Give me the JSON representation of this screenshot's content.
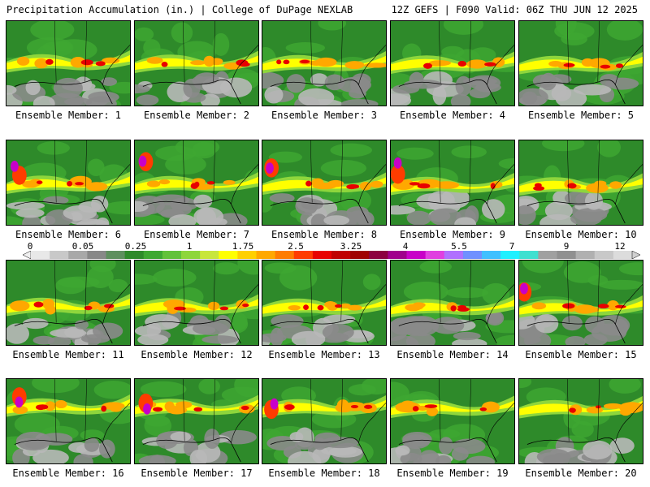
{
  "header": {
    "title_left": "Precipitation Accumulation (in.) | College of DuPage NEXLAB",
    "title_right": "12Z GEFS | F090 Valid: 06Z THU JUN 12 2025"
  },
  "colorbar": {
    "labels": [
      "0",
      "0.05",
      "0.25",
      "1",
      "1.75",
      "2.5",
      "3.25",
      "4",
      "5.5",
      "7",
      "9",
      "12"
    ],
    "colors": [
      "#e8e8e8",
      "#c8c8c8",
      "#a8a8a8",
      "#888888",
      "#5e8f5e",
      "#2e8a2a",
      "#3ea832",
      "#62c23a",
      "#8ed63c",
      "#c8e63c",
      "#ffff00",
      "#ffd000",
      "#ffa800",
      "#ff7c00",
      "#ff3c00",
      "#e80000",
      "#c00000",
      "#a00000",
      "#8c0040",
      "#a0008c",
      "#c800c8",
      "#e040e0",
      "#b070ff",
      "#7090ff",
      "#40c0ff",
      "#20f0ff",
      "#40e0d0",
      "#a0a0a0",
      "#909090",
      "#b0b0b0",
      "#c8c8c8",
      "#dcdcdc"
    ]
  },
  "members": [
    {
      "label": "Ensemble Member: 1"
    },
    {
      "label": "Ensemble Member: 2"
    },
    {
      "label": "Ensemble Member: 3"
    },
    {
      "label": "Ensemble Member: 4"
    },
    {
      "label": "Ensemble Member: 5"
    },
    {
      "label": "Ensemble Member: 6"
    },
    {
      "label": "Ensemble Member: 7"
    },
    {
      "label": "Ensemble Member: 8"
    },
    {
      "label": "Ensemble Member: 9"
    },
    {
      "label": "Ensemble Member: 10"
    },
    {
      "label": "Ensemble Member: 11"
    },
    {
      "label": "Ensemble Member: 12"
    },
    {
      "label": "Ensemble Member: 13"
    },
    {
      "label": "Ensemble Member: 14"
    },
    {
      "label": "Ensemble Member: 15"
    },
    {
      "label": "Ensemble Member: 16"
    },
    {
      "label": "Ensemble Member: 17"
    },
    {
      "label": "Ensemble Member: 18"
    },
    {
      "label": "Ensemble Member: 19"
    },
    {
      "label": "Ensemble Member: 20"
    }
  ]
}
